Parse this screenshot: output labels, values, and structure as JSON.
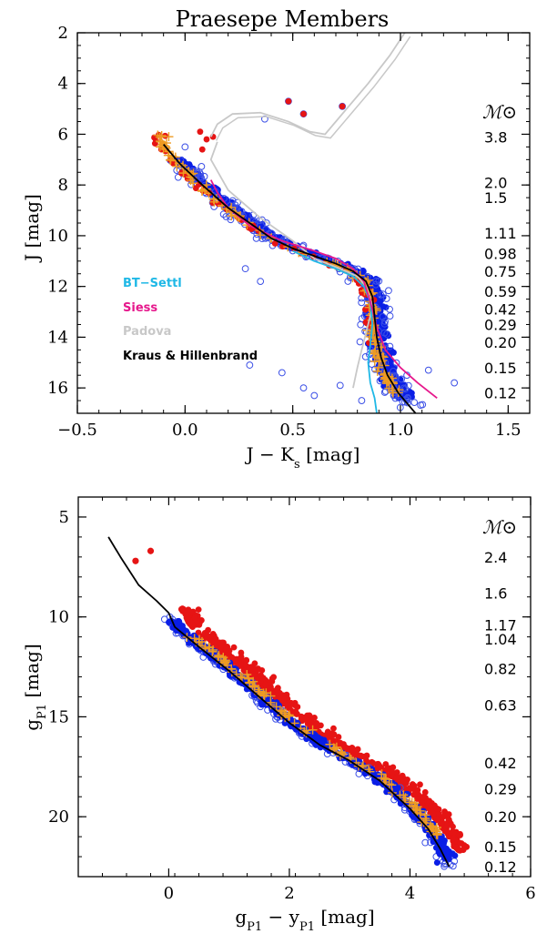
{
  "chart_data": [
    {
      "type": "scatter",
      "title": "Praesepe Members",
      "xlabel": "J − K",
      "xlabel_sub": "s",
      "xlabel_unit": " [mag]",
      "ylabel": "J [mag]",
      "xlim": [
        -0.5,
        1.6
      ],
      "ylim": [
        17,
        2
      ],
      "y_inverted": true,
      "x_ticks": [
        -0.5,
        0.0,
        0.5,
        1.0,
        1.5
      ],
      "x_tick_labels": [
        "−0.5",
        "0.0",
        "0.5",
        "1.0",
        "1.5"
      ],
      "y_ticks": [
        2,
        4,
        6,
        8,
        10,
        12,
        14,
        16
      ],
      "y_tick_labels": [
        "2",
        "4",
        "6",
        "8",
        "10",
        "12",
        "14",
        "16"
      ],
      "mass_header": "ℳ⊙",
      "mass_labels": [
        {
          "text": "3.8",
          "y": 6.1
        },
        {
          "text": "2.0",
          "y": 7.9
        },
        {
          "text": "1.5",
          "y": 8.5
        },
        {
          "text": "1.11",
          "y": 9.9
        },
        {
          "text": "0.98",
          "y": 10.7
        },
        {
          "text": "0.75",
          "y": 11.4
        },
        {
          "text": "0.59",
          "y": 12.2
        },
        {
          "text": "0.42",
          "y": 12.9
        },
        {
          "text": "0.29",
          "y": 13.5
        },
        {
          "text": "0.20",
          "y": 14.2
        },
        {
          "text": "0.15",
          "y": 15.2
        },
        {
          "text": "0.12",
          "y": 16.2
        }
      ],
      "legend": [
        {
          "name": "BT−Settl",
          "color": "#1fb8e6"
        },
        {
          "name": "Siess",
          "color": "#e6188c"
        },
        {
          "name": "Padova",
          "color": "#c8c8c8"
        },
        {
          "name": "Kraus & Hillenbrand",
          "color": "#000000"
        }
      ],
      "series": [
        {
          "name": "Padova",
          "color": "#c8c8c8",
          "x": [
            0.15,
            0.12,
            0.2,
            0.35,
            0.5,
            0.6,
            0.72,
            0.8,
            0.84,
            0.87,
            0.85,
            0.82,
            0.8,
            0.78
          ],
          "y": [
            6.3,
            7.0,
            8.2,
            9.3,
            10.2,
            10.9,
            11.3,
            11.6,
            12.0,
            12.8,
            13.5,
            14.5,
            15.2,
            16.0
          ],
          "branch_x": [
            0.12,
            0.15,
            0.22,
            0.35,
            0.48,
            0.58,
            0.65,
            0.75,
            0.85,
            0.95,
            1.02
          ],
          "branch_y": [
            6.1,
            5.6,
            5.2,
            5.15,
            5.5,
            5.9,
            6.0,
            5.0,
            4.0,
            2.9,
            2.0
          ]
        },
        {
          "name": "BT−Settl",
          "color": "#1fb8e6",
          "x": [
            0.5,
            0.6,
            0.7,
            0.78,
            0.83,
            0.86,
            0.87,
            0.86,
            0.85,
            0.86,
            0.88,
            0.89
          ],
          "y": [
            10.6,
            11.0,
            11.3,
            11.6,
            12.0,
            12.6,
            13.5,
            14.3,
            15.0,
            15.8,
            16.4,
            17.0
          ]
        },
        {
          "name": "Siess",
          "color": "#e6188c",
          "x": [
            0.12,
            0.15,
            0.2,
            0.3,
            0.45,
            0.6,
            0.7,
            0.78,
            0.83,
            0.86,
            0.89,
            0.93,
            1.0,
            1.08,
            1.17
          ],
          "y": [
            7.8,
            8.3,
            8.9,
            9.6,
            10.2,
            10.6,
            10.9,
            11.3,
            11.8,
            12.6,
            13.6,
            14.5,
            15.2,
            15.8,
            16.4
          ]
        },
        {
          "name": "Kraus & Hillenbrand",
          "color": "#000000",
          "x": [
            -0.1,
            -0.02,
            0.08,
            0.2,
            0.3,
            0.4,
            0.5,
            0.6,
            0.7,
            0.78,
            0.84,
            0.87,
            0.88,
            0.89,
            0.91,
            0.94,
            0.99,
            1.04,
            1.07
          ],
          "y": [
            6.4,
            7.2,
            8.0,
            8.9,
            9.5,
            10.1,
            10.5,
            10.8,
            11.1,
            11.4,
            11.8,
            12.4,
            13.2,
            14.0,
            14.8,
            15.5,
            16.2,
            16.7,
            17.0
          ]
        }
      ],
      "markers": [
        {
          "name": "members",
          "style": "filled blue circle",
          "color": "#0a1ee6"
        },
        {
          "name": "candidates",
          "style": "open blue circle",
          "color": "#3c50e6"
        },
        {
          "name": "binaries",
          "style": "orange plus",
          "color": "#ee9b22"
        },
        {
          "name": "known members",
          "style": "red filled circle",
          "color": "#e61414"
        }
      ]
    },
    {
      "type": "scatter",
      "title": "",
      "xlabel": "g",
      "xlabel_sub": "P1",
      "xlabel_mid": " − y",
      "xlabel_sub2": "P1",
      "xlabel_unit": " [mag]",
      "ylabel": "g",
      "ylabel_sub": "P1",
      "ylabel_unit": " [mag]",
      "xlim": [
        -1.5,
        6
      ],
      "ylim": [
        23,
        4
      ],
      "y_inverted": true,
      "x_ticks": [
        0,
        2,
        4,
        6
      ],
      "x_tick_labels": [
        "0",
        "2",
        "4",
        "6"
      ],
      "y_ticks": [
        5,
        10,
        15,
        20
      ],
      "y_tick_labels": [
        "5",
        "10",
        "15",
        "20"
      ],
      "mass_header": "ℳ⊙",
      "mass_labels": [
        {
          "text": "2.4",
          "y": 7.0
        },
        {
          "text": "1.6",
          "y": 8.8
        },
        {
          "text": "1.17",
          "y": 10.4
        },
        {
          "text": "1.04",
          "y": 11.1
        },
        {
          "text": "0.82",
          "y": 12.6
        },
        {
          "text": "0.63",
          "y": 14.4
        },
        {
          "text": "0.42",
          "y": 17.3
        },
        {
          "text": "0.29",
          "y": 18.6
        },
        {
          "text": "0.20",
          "y": 20.0
        },
        {
          "text": "0.15",
          "y": 21.5
        },
        {
          "text": "0.12",
          "y": 22.5
        }
      ],
      "series": [
        {
          "name": "Kraus & Hillenbrand",
          "color": "#000000",
          "x": [
            -1.0,
            -0.8,
            -0.5,
            -0.2,
            0.0,
            0.1,
            0.5,
            1.0,
            1.5,
            2.0,
            2.5,
            3.0,
            3.5,
            4.0,
            4.3,
            4.5,
            4.65
          ],
          "y": [
            6.0,
            7.0,
            8.4,
            9.2,
            9.8,
            10.5,
            11.5,
            12.7,
            14.0,
            15.3,
            16.4,
            17.2,
            18.2,
            19.6,
            20.6,
            21.6,
            22.5
          ]
        }
      ]
    }
  ]
}
